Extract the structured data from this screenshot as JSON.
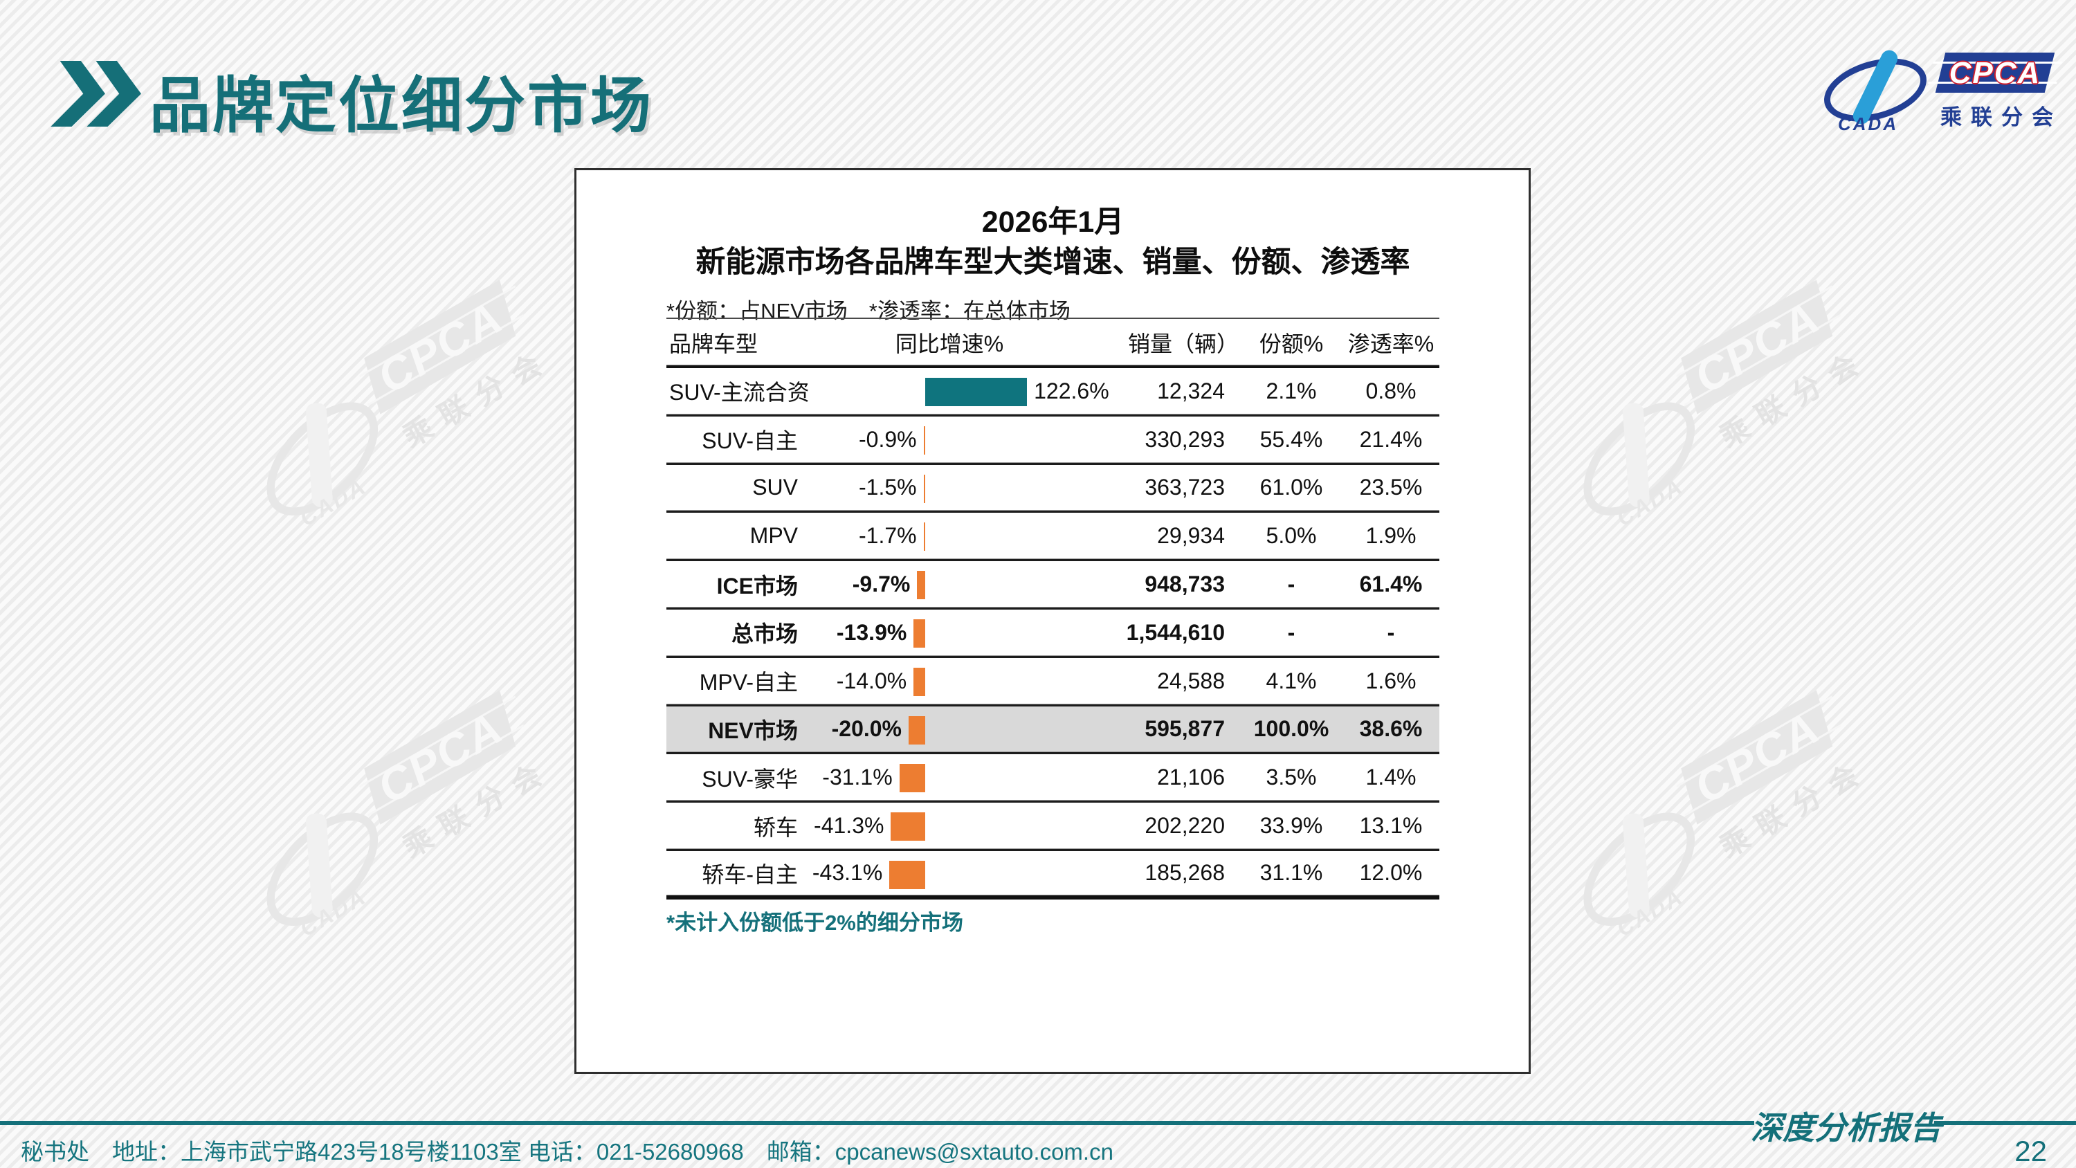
{
  "slide": {
    "title": "品牌定位细分市场",
    "report_label": "深度分析报告",
    "footer_contact": "秘书处　地址：上海市武宁路423号18号楼1103室 电话：021-52680968　邮箱：cpcanews@sxtauto.com.cn",
    "page_number": "22"
  },
  "logo": {
    "cpca": "CPCA",
    "cada": "CADA",
    "subtitle": "乘联分会"
  },
  "watermark": {
    "cpca": "CPCA",
    "cada": "CADA",
    "subtitle": "乘联分会"
  },
  "panel": {
    "title_line1": "2026年1月",
    "title_line2": "新能源市场各品牌车型大类增速、销量、份额、渗透率",
    "note": "*份额：占NEV市场　*渗透率：在总体市场",
    "footnote": "*未计入份额低于2%的细分市场"
  },
  "table": {
    "headers": {
      "brand": "品牌车型",
      "growth": "同比增速%",
      "sales": "销量（辆）",
      "share": "份额%",
      "penetration": "渗透率%"
    },
    "rows": [
      {
        "label": "SUV-主流合资",
        "growth": 122.6,
        "growth_label": "122.6%",
        "sales": "12,324",
        "share": "2.1%",
        "penetration": "0.8%",
        "bold": false,
        "highlight": false
      },
      {
        "label": "SUV-自主",
        "growth": -0.9,
        "growth_label": "-0.9%",
        "sales": "330,293",
        "share": "55.4%",
        "penetration": "21.4%",
        "bold": false,
        "highlight": false
      },
      {
        "label": "SUV",
        "growth": -1.5,
        "growth_label": "-1.5%",
        "sales": "363,723",
        "share": "61.0%",
        "penetration": "23.5%",
        "bold": false,
        "highlight": false
      },
      {
        "label": "MPV",
        "growth": -1.7,
        "growth_label": "-1.7%",
        "sales": "29,934",
        "share": "5.0%",
        "penetration": "1.9%",
        "bold": false,
        "highlight": false
      },
      {
        "label": "ICE市场",
        "growth": -9.7,
        "growth_label": "-9.7%",
        "sales": "948,733",
        "share": "-",
        "penetration": "61.4%",
        "bold": true,
        "highlight": false
      },
      {
        "label": "总市场",
        "growth": -13.9,
        "growth_label": "-13.9%",
        "sales": "1,544,610",
        "share": "-",
        "penetration": "-",
        "bold": true,
        "highlight": false
      },
      {
        "label": "MPV-自主",
        "growth": -14.0,
        "growth_label": "-14.0%",
        "sales": "24,588",
        "share": "4.1%",
        "penetration": "1.6%",
        "bold": false,
        "highlight": false
      },
      {
        "label": "NEV市场",
        "growth": -20.0,
        "growth_label": "-20.0%",
        "sales": "595,877",
        "share": "100.0%",
        "penetration": "38.6%",
        "bold": true,
        "highlight": true
      },
      {
        "label": "SUV-豪华",
        "growth": -31.1,
        "growth_label": "-31.1%",
        "sales": "21,106",
        "share": "3.5%",
        "penetration": "1.4%",
        "bold": false,
        "highlight": false
      },
      {
        "label": "轿车",
        "growth": -41.3,
        "growth_label": "-41.3%",
        "sales": "202,220",
        "share": "33.9%",
        "penetration": "13.1%",
        "bold": false,
        "highlight": false
      },
      {
        "label": "轿车-自主",
        "growth": -43.1,
        "growth_label": "-43.1%",
        "sales": "185,268",
        "share": "31.1%",
        "penetration": "12.0%",
        "bold": false,
        "highlight": false
      }
    ]
  },
  "chart_data": {
    "type": "bar",
    "orientation": "horizontal",
    "title": "2026年1月 新能源市场各品牌车型大类增速、销量、份额、渗透率",
    "notes": [
      "*份额：占NEV市场",
      "*渗透率：在总体市场",
      "*未计入份额低于2%的细分市场"
    ],
    "categories": [
      "SUV-主流合资",
      "SUV-自主",
      "SUV",
      "MPV",
      "ICE市场",
      "总市场",
      "MPV-自主",
      "NEV市场",
      "SUV-豪华",
      "轿车",
      "轿车-自主"
    ],
    "series": [
      {
        "name": "同比增速%",
        "values": [
          122.6,
          -0.9,
          -1.5,
          -1.7,
          -9.7,
          -13.9,
          -14.0,
          -20.0,
          -31.1,
          -41.3,
          -43.1
        ]
      },
      {
        "name": "销量（辆）",
        "values": [
          12324,
          330293,
          363723,
          29934,
          948733,
          1544610,
          24588,
          595877,
          21106,
          202220,
          185268
        ]
      },
      {
        "name": "份额%",
        "values": [
          2.1,
          55.4,
          61.0,
          5.0,
          null,
          null,
          4.1,
          100.0,
          3.5,
          33.9,
          31.1
        ]
      },
      {
        "name": "渗透率%",
        "values": [
          0.8,
          21.4,
          23.5,
          1.9,
          61.4,
          null,
          1.6,
          38.6,
          1.4,
          13.1,
          12.0
        ]
      }
    ],
    "bar_colors": {
      "positive": "#0F747E",
      "negative": "#ED7D31"
    },
    "highlighted_category": "NEV市场",
    "bold_categories": [
      "ICE市场",
      "总市场",
      "NEV市场"
    ],
    "grid": false,
    "legend": "none"
  },
  "colors": {
    "accent_teal": "#156F78",
    "bar_positive": "#0F747E",
    "bar_negative": "#ED7D31",
    "highlight_row_bg": "#D9D9D9",
    "logo_blue": "#223f94",
    "logo_light_blue": "#2a9fd8",
    "logo_red": "#cf1f2e"
  }
}
